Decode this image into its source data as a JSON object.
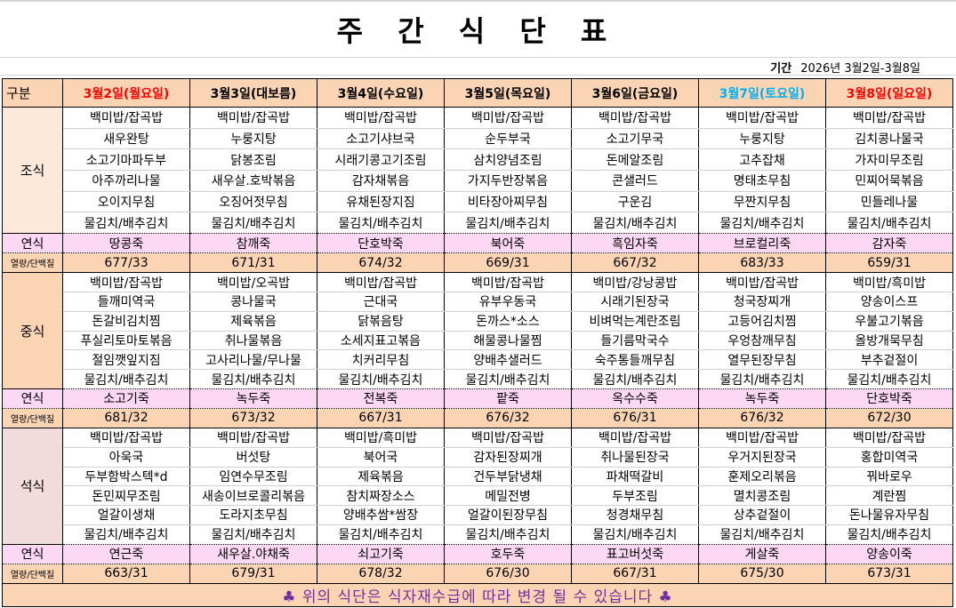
{
  "title": "주 간 식 단 표",
  "period": {
    "label": "기간",
    "value": "2026년 3월2일-3월8일"
  },
  "header_label": "구분",
  "days": [
    {
      "label": "3월2일(월요일)",
      "color": "#ff0000"
    },
    {
      "label": "3월3일(대보름)",
      "color": "#000000"
    },
    {
      "label": "3월4일(수요일)",
      "color": "#000000"
    },
    {
      "label": "3월5일(목요일)",
      "color": "#000000"
    },
    {
      "label": "3월6일(금요일)",
      "color": "#000000"
    },
    {
      "label": "3월7일(토요일)",
      "color": "#00b0f0"
    },
    {
      "label": "3월8일(일요일)",
      "color": "#ff0000"
    }
  ],
  "snack_label": "연식",
  "kcal_label": "열량/단백질",
  "sections": [
    {
      "key": "b",
      "label": "조식",
      "label_color": "#fce9da",
      "items": [
        [
          "백미밥/잡곡밥",
          "백미밥/잡곡밥",
          "백미밥/잡곡밥",
          "백미밥/잡곡밥",
          "백미밥/잡곡밥",
          "백미밥/잡곡밥",
          "백미밥/잡곡밥"
        ],
        [
          "새우완탕",
          "누룽지탕",
          "소고기샤브국",
          "순두부국",
          "소고기무국",
          "누룽지탕",
          "김치콩나물국"
        ],
        [
          "소고기마파두부",
          "닭봉조림",
          "시래기콩고기조림",
          "삼치양념조림",
          "돈메알조림",
          "고추잡채",
          "가자미무조림"
        ],
        [
          "아주까리나물",
          "새우살.호박볶음",
          "감자채볶음",
          "가지두반장볶음",
          "콘샐러드",
          "명태초무침",
          "민찌어묵볶음"
        ],
        [
          "오이지무침",
          "오징어젓무침",
          "유채된장지짐",
          "비타장아찌무침",
          "구운김",
          "무짠지무침",
          "민들레나물"
        ],
        [
          "물김치/배추김치",
          "물김치/배추김치",
          "물김치/배추김치",
          "물김치/배추김치",
          "물김치/배추김치",
          "물김치/배추김치",
          "물김치/배추김치"
        ]
      ],
      "snacks": [
        "땅콩죽",
        "참깨죽",
        "단호박죽",
        "북어죽",
        "흑임자죽",
        "브로컬리죽",
        "감자죽"
      ],
      "kcal": [
        "677/33",
        "671/31",
        "674/32",
        "669/31",
        "667/32",
        "683/33",
        "659/31"
      ]
    },
    {
      "key": "l",
      "label": "중식",
      "label_color": "#fbd4b4",
      "items": [
        [
          "백미밥/잡곡밥",
          "백미밥/오곡밥",
          "백미밥/잡곡밥",
          "백미밥/잡곡밥",
          "백미밥/강낭콩밥",
          "백미밥/잡곡밥",
          "백미밥/흑미밥"
        ],
        [
          "들깨미역국",
          "콩나물국",
          "근대국",
          "유부우동국",
          "시래기된장국",
          "청국장찌개",
          "양송이스프"
        ],
        [
          "돈갈비김치찜",
          "제육볶음",
          "닭볶음탕",
          "돈까스*소스",
          "비벼먹는계란조림",
          "고등어김치찜",
          "우불고기볶음"
        ],
        [
          "푸실리토마토볶음",
          "취나물볶음",
          "소세지표고볶음",
          "해물콩나물찜",
          "들기름막국수",
          "우엉참깨무침",
          "올방개묵무침"
        ],
        [
          "절임깻잎지짐",
          "고사리나물/무나물",
          "치커리무침",
          "양배추샐러드",
          "숙주통들깨무침",
          "열무된장무침",
          "부추겉절이"
        ],
        [
          "물김치/배추김치",
          "물김치/배추김치",
          "물김치/배추김치",
          "물김치/배추김치",
          "물김치/배추김치",
          "물김치/배추김치",
          "물김치/배추김치"
        ]
      ],
      "snacks": [
        "소고기죽",
        "녹두죽",
        "전복죽",
        "팥죽",
        "옥수수죽",
        "녹두죽",
        "단호박죽"
      ],
      "kcal": [
        "681/32",
        "673/32",
        "667/31",
        "676/32",
        "676/31",
        "676/32",
        "672/30"
      ]
    },
    {
      "key": "d",
      "label": "석식",
      "label_color": "#f2dcdb",
      "items": [
        [
          "백미밥/잡곡밥",
          "백미밥/잡곡밥",
          "백미밥/흑미밥",
          "백미밥/잡곡밥",
          "백미밥/잡곡밥",
          "백미밥/잡곡밥",
          "백미밥/잡곡밥"
        ],
        [
          "아욱국",
          "버섯탕",
          "북어국",
          "감자된장찌개",
          "취나물된장국",
          "우거지된장국",
          "홍합미역국"
        ],
        [
          "두부함박스텍*d",
          "임연수무조림",
          "제육볶음",
          "건두부닭냉채",
          "파채떡갈비",
          "훈제오리볶음",
          "꿔바로우"
        ],
        [
          "돈민찌무조림",
          "새송이브로콜리볶음",
          "참치짜장소스",
          "메밀전병",
          "두부조림",
          "멸치콩조림",
          "계란찜"
        ],
        [
          "얼갈이생채",
          "도라지초무침",
          "양배추쌈*쌈장",
          "얼갈이된장무침",
          "청경채무침",
          "상추겉절이",
          "돈나물유자무침"
        ],
        [
          "물김치/배추김치",
          "물김치/배추김치",
          "물김치/배추김치",
          "물김치/배추김치",
          "물김치/배추김치",
          "물김치/배추김치",
          "물김치/배추김치"
        ]
      ],
      "snacks": [
        "연근죽",
        "새우살.야채죽",
        "쇠고기죽",
        "호두죽",
        "표고버섯죽",
        "게살죽",
        "양송이죽"
      ],
      "kcal": [
        "663/31",
        "679/31",
        "678/32",
        "676/30",
        "667/31",
        "675/30",
        "673/31"
      ]
    }
  ],
  "footer": {
    "icon": "club-icon",
    "text": "위의 식단은 식자재수급에 따라 변경 될 수 있습니다",
    "color": "#7030a0"
  }
}
